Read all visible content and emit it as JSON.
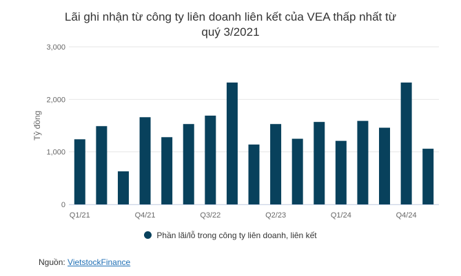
{
  "chart_data": {
    "type": "bar",
    "title_line1": "Lãi ghi nhận từ công ty liên doanh liên kết của VEA thấp nhất từ",
    "title_line2": "quý 3/2021",
    "ylabel": "Tỷ đồng",
    "ylim": [
      0,
      3000
    ],
    "yticks": [
      "0",
      "1,000",
      "2,000",
      "3,000"
    ],
    "categories": [
      "Q1/21",
      "Q2/21",
      "Q3/21",
      "Q4/21",
      "Q1/22",
      "Q2/22",
      "Q3/22",
      "Q4/22",
      "Q1/23",
      "Q2/23",
      "Q3/23",
      "Q4/23",
      "Q1/24",
      "Q2/24",
      "Q3/24",
      "Q4/24",
      "Q1/25"
    ],
    "tick_labels": [
      "Q1/21",
      "",
      "",
      "Q4/21",
      "",
      "",
      "Q3/22",
      "",
      "",
      "Q2/23",
      "",
      "",
      "Q1/24",
      "",
      "",
      "Q4/24",
      ""
    ],
    "series": [
      {
        "name": "Phần lãi/lỗ trong công ty liên doanh, liên kết",
        "color": "#08415c",
        "values": [
          1240,
          1490,
          630,
          1660,
          1280,
          1530,
          1690,
          2320,
          1140,
          1530,
          1250,
          1570,
          1210,
          1590,
          1460,
          2320,
          1060
        ]
      }
    ],
    "grid": true
  },
  "source": {
    "label": "Nguồn:",
    "link_text": "VietstockFinance"
  }
}
